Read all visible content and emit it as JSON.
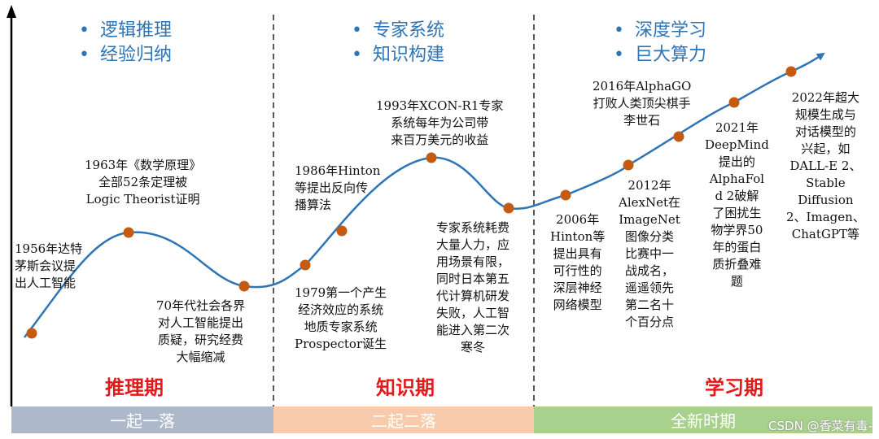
{
  "sections": [
    {
      "bullets": [
        "逻辑推理",
        "经验归纳"
      ],
      "period": "推理期",
      "band": "一起一落",
      "band_color": "#adb9ca"
    },
    {
      "bullets": [
        "专家系统",
        "知识构建"
      ],
      "period": "知识期",
      "band": "二起二落",
      "band_color": "#f8cbad"
    },
    {
      "bullets": [
        "深度学习",
        "巨大算力"
      ],
      "period": "学习期",
      "band": "全新时期",
      "band_color": "#a9d18e"
    }
  ],
  "bullet_symbol": "•",
  "events": [
    "1956年达特\n茅斯会议提\n出人工智能",
    "1963年《数学原理》\n全部52条定理被\nLogic Theorist证明",
    "70年代社会各界\n对人工智能提出\n质疑，研究经费\n大幅缩减",
    "1979第一个产生\n经济效应的系统\n地质专家系统\nProspector诞生",
    "1986年Hinton\n等提出反向传\n播算法",
    "1993年XCON-R1专家\n系统每年为公司带\n来百万美元的收益",
    "专家系统耗费\n大量人力，应\n用场景有限，\n同时日本第五\n代计算机研发\n失败，人工智\n能进入第二次\n寒冬",
    "2006年\nHinton等\n提出具有\n可行性的\n深层神经\n网络模型",
    "2012年\nAlexNet在\nImageNet\n图像分类\n比赛中一\n战成名，\n遥遥领先\n第二名十\n个百分点",
    "2016年AlphaGO\n打败人类顶尖棋手\n李世石",
    "2021年\nDeepMind\n提出的\nAlphaFol\nd 2破解\n了困扰生\n物学界50\n年的蛋白\n质折叠难\n题",
    "2022年超大\n规模生成与\n对话模型的\n兴起，如\nDALL-E 2、\nStable\nDiffusion\n2、Imagen、\nChatGPT等"
  ],
  "colors": {
    "curve": "#2e75b6",
    "point": "#c55a11",
    "period": "#e31a1c",
    "bullet": "#2e75b6"
  },
  "watermark": "CSDN @香菜有毒-"
}
